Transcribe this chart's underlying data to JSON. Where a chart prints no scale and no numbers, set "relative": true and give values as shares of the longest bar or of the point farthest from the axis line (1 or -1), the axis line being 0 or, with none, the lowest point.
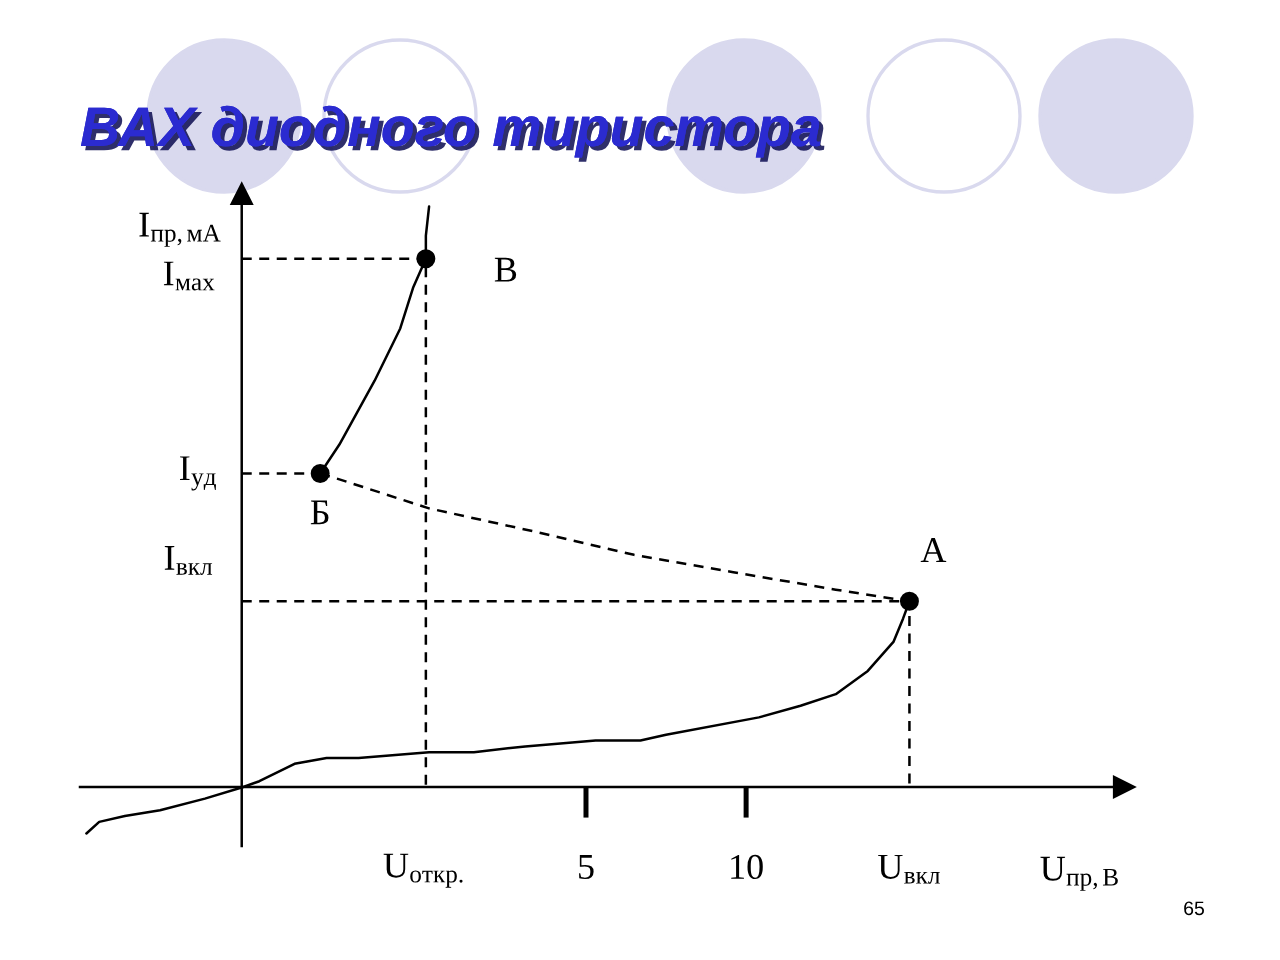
{
  "chart_data": {
    "type": "line",
    "relative": true,
    "title": "ВАХ диодного тиристора",
    "xlabel": "U$_{пр,В}$",
    "ylabel": "I$_{пр,мА}$",
    "xlim": [
      -10.8,
      21.8
    ],
    "xticks": [
      {
        "value": 0,
        "label": "U$_{откр.}$"
      },
      5,
      10,
      {
        "value": 15.1,
        "label": "U$_{вкл}$"
      }
    ],
    "ref_lines": [
      {
        "axis": "x",
        "value": -5.75
      }
    ],
    "series": [
      {
        "color": "#000000",
        "line_style": "solid",
        "x": [
          -10.6,
          -10.2,
          -9.4,
          -8.3,
          -6.9,
          -5.7,
          -5.2,
          -4.1,
          -3.1,
          -2.1,
          0.1,
          1.5,
          3.1,
          5.3,
          6.7,
          7.5,
          10.4,
          11.7,
          12.8,
          13.8,
          14.6,
          14.9,
          15.1
        ],
        "values": [
          -0.08,
          -0.06,
          -0.05,
          -0.04,
          -0.02,
          0,
          0.01,
          0.04,
          0.05,
          0.05,
          0.06,
          0.06,
          0.07,
          0.08,
          0.08,
          0.09,
          0.12,
          0.14,
          0.16,
          0.2,
          0.25,
          0.29,
          0.32
        ]
      },
      {
        "color": "#000000",
        "line_style": "dashed",
        "x": [
          -3.3,
          -2.7,
          0.1,
          3.4,
          6.5,
          9.6,
          12.8,
          15.1
        ],
        "values": [
          0.54,
          0.53,
          0.48,
          0.44,
          0.4,
          0.37,
          0.34,
          0.32
        ]
      },
      {
        "color": "#000000",
        "line_style": "solid",
        "x": [
          -3.3,
          -2.7,
          -1.6,
          -0.8,
          -0.4,
          0,
          0,
          0.1
        ],
        "values": [
          0.54,
          0.59,
          0.7,
          0.79,
          0.86,
          0.91,
          0.95,
          1
        ]
      },
      {
        "color": "#000000",
        "line_style": "dashed",
        "x": [
          -5.75,
          0,
          0
        ],
        "values": [
          0.91,
          0.91,
          0
        ]
      },
      {
        "color": "#000000",
        "line_style": "dashed",
        "x": [
          -5.75,
          -3.3
        ],
        "values": [
          0.54,
          0.54
        ]
      },
      {
        "color": "#000000",
        "line_style": "dashed",
        "x": [
          -5.75,
          15.1,
          15.1
        ],
        "values": [
          0.32,
          0.32,
          0
        ]
      },
      {
        "type": "scatter",
        "color": "#000000",
        "marker": "circle",
        "x": [
          15.1,
          -3.3,
          0
        ],
        "values": [
          0.32,
          0.54,
          0.91
        ]
      }
    ],
    "annotations": [
      {
        "text": "I$_{мах}$",
        "x": -5.75,
        "y": 0.91
      },
      {
        "text": "I$_{уд}$",
        "x": -5.75,
        "y": 0.54
      },
      {
        "text": "I$_{вкл}$",
        "x": -5.75,
        "y": 0.32
      },
      {
        "text": "А",
        "x": 15.1,
        "y": 0.32
      },
      {
        "text": "Б",
        "x": -3.3,
        "y": 0.54
      },
      {
        "text": "В",
        "x": 0,
        "y": 0.91
      },
      "65"
    ]
  }
}
